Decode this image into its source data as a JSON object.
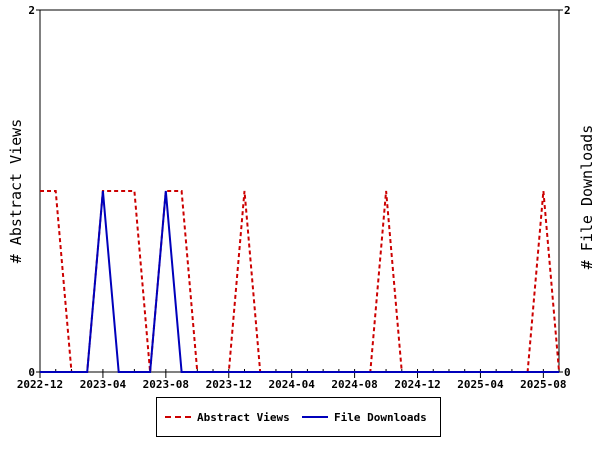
{
  "chart_data": {
    "type": "line",
    "title": "",
    "ylabel_left": "# Abstract Views",
    "ylabel_right": "# File Downloads",
    "ylim": [
      0,
      2
    ],
    "y_ticks": [
      "0",
      "2"
    ],
    "x_ticks": [
      "2022-12",
      "2023-04",
      "2023-08",
      "2023-12",
      "2024-04",
      "2024-08",
      "2024-12",
      "2025-04",
      "2025-08"
    ],
    "x": [
      "2022-12",
      "2023-01",
      "2023-02",
      "2023-03",
      "2023-04",
      "2023-05",
      "2023-06",
      "2023-07",
      "2023-08",
      "2023-09",
      "2023-10",
      "2023-11",
      "2023-12",
      "2024-01",
      "2024-02",
      "2024-03",
      "2024-04",
      "2024-05",
      "2024-06",
      "2024-07",
      "2024-08",
      "2024-09",
      "2024-10",
      "2024-11",
      "2024-12",
      "2025-01",
      "2025-02",
      "2025-03",
      "2025-04",
      "2025-05",
      "2025-06",
      "2025-07",
      "2025-08",
      "2025-09"
    ],
    "series": [
      {
        "name": "Abstract Views",
        "color": "#cc0000",
        "dash": "dashed",
        "values": [
          1,
          1,
          0,
          0,
          1,
          1,
          1,
          0,
          1,
          1,
          0,
          0,
          0,
          1,
          0,
          0,
          0,
          0,
          0,
          0,
          0,
          0,
          1,
          0,
          0,
          0,
          0,
          0,
          0,
          0,
          0,
          0,
          1,
          0
        ]
      },
      {
        "name": "File Downloads",
        "color": "#0000bb",
        "dash": "solid",
        "values": [
          0,
          0,
          0,
          0,
          1,
          0,
          0,
          0,
          1,
          0,
          0,
          0,
          0,
          0,
          0,
          0,
          0,
          0,
          0,
          0,
          0,
          0,
          0,
          0,
          0,
          0,
          0,
          0,
          0,
          0,
          0,
          0,
          0,
          0
        ]
      }
    ],
    "grid": false,
    "legend_position": "bottom-center"
  }
}
